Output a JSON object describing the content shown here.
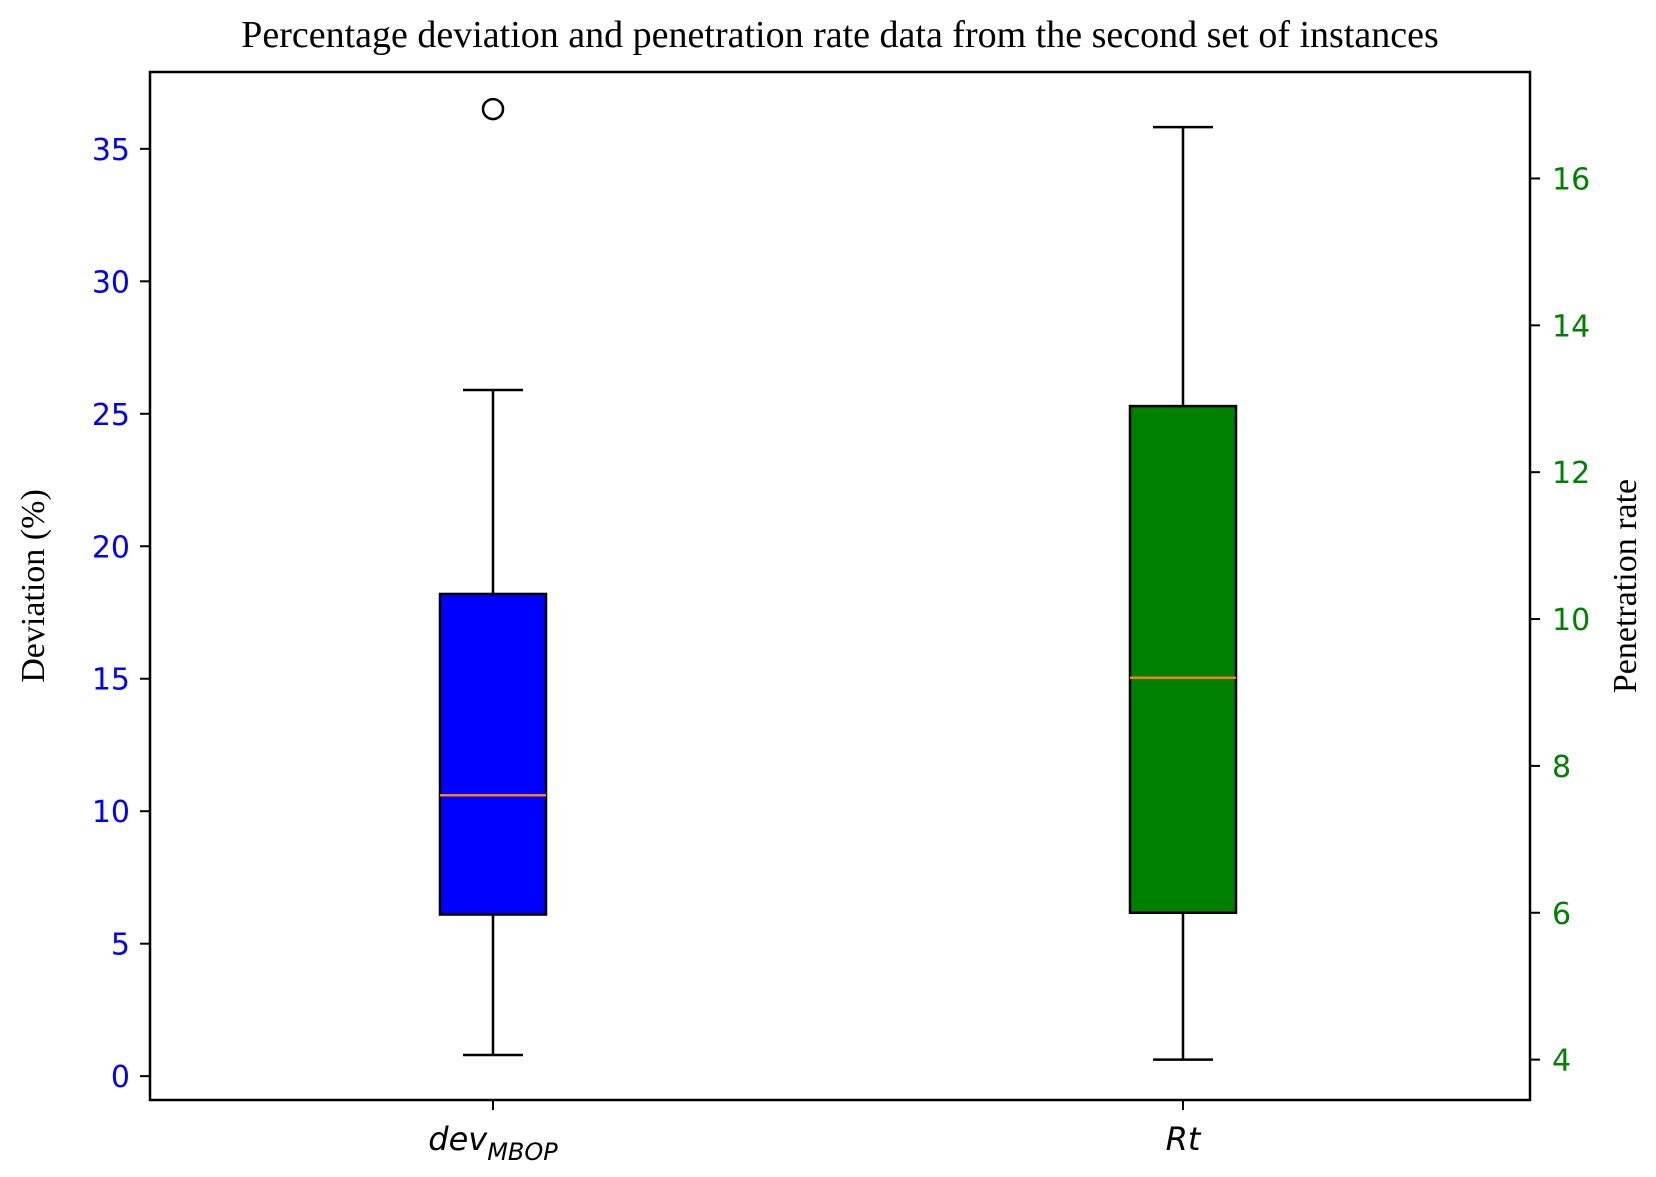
{
  "chart_data": {
    "type": "box",
    "title": "Percentage deviation and penetration rate data from the second set of instances",
    "left_axis": {
      "label": "Deviation (%)",
      "range": [
        -0.9,
        37.9
      ],
      "ticks": [
        0,
        5,
        10,
        15,
        20,
        25,
        30,
        35
      ],
      "color": "#0000ff"
    },
    "right_axis": {
      "label": "Penetration rate",
      "range": [
        3.45,
        17.45
      ],
      "ticks": [
        4,
        6,
        8,
        10,
        12,
        14,
        16
      ],
      "color": "#008000"
    },
    "categories": [
      {
        "main": "dev",
        "sub": "MBOP"
      },
      {
        "main": "Rt",
        "sub": ""
      }
    ],
    "boxes": [
      {
        "category_index": 0,
        "axis": "left",
        "whisker_low": 0.8,
        "q1": 6.1,
        "median": 10.6,
        "q3": 18.2,
        "whisker_high": 25.9,
        "outliers": [
          36.5
        ],
        "fill": "#0000ff",
        "median_color": "#ff7f0e"
      },
      {
        "category_index": 1,
        "axis": "right",
        "whisker_low": 4.0,
        "q1": 6.0,
        "median": 9.2,
        "q3": 12.9,
        "whisker_high": 16.7,
        "outliers": [],
        "fill": "#008000",
        "median_color": "#ff7f0e"
      }
    ]
  }
}
